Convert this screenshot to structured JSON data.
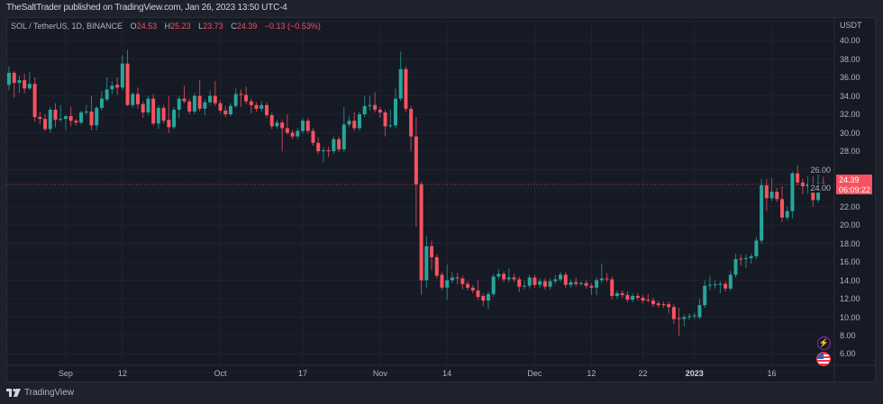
{
  "header": {
    "published": "TheSaltTrader published on TradingView.com, Jan 26, 2023 13:50 UTC-4"
  },
  "legend": {
    "symbol": "SOL / TetherUS, 1D, BINANCE",
    "o_label": "O",
    "o": "24.53",
    "h_label": "H",
    "h": "25.23",
    "l_label": "L",
    "l": "23.73",
    "c_label": "C",
    "c": "24.39",
    "change": "−0.13 (−0.53%)"
  },
  "price_axis": {
    "unit": "USDT",
    "last_price": "24.39",
    "countdown": "06:09:22"
  },
  "footer": {
    "brand": "TradingView"
  },
  "icons": {
    "events": "lightning-icon",
    "country": "us-flag-icon"
  },
  "colors": {
    "up": "#26a69a",
    "down": "#f7525f",
    "background": "#161a25",
    "grid": "#1f2330"
  },
  "chart_data": {
    "type": "candlestick",
    "title": "SOL / TetherUS, 1D, BINANCE",
    "ylabel": "USDT",
    "ylim": [
      4.78,
      42.54
    ],
    "grid": true,
    "y_ticks": [
      "40.00",
      "38.00",
      "36.00",
      "34.00",
      "32.00",
      "30.00",
      "28.00",
      "26.00",
      "24.00",
      "22.00",
      "20.00",
      "18.00",
      "16.00",
      "14.00",
      "12.00",
      "10.00",
      "8.00",
      "6.00"
    ],
    "x_ticks": [
      {
        "label": "Sep",
        "date": "2022-09-01"
      },
      {
        "label": "12",
        "date": "2022-09-12"
      },
      {
        "label": "Oct",
        "date": "2022-10-01"
      },
      {
        "label": "17",
        "date": "2022-10-17"
      },
      {
        "label": "Nov",
        "date": "2022-11-01"
      },
      {
        "label": "14",
        "date": "2022-11-14"
      },
      {
        "label": "Dec",
        "date": "2022-12-01"
      },
      {
        "label": "12",
        "date": "2022-12-12"
      },
      {
        "label": "22",
        "date": "2022-12-22"
      },
      {
        "label": "2023",
        "date": "2023-01-01",
        "bold": true
      },
      {
        "label": "16",
        "date": "2023-01-16"
      }
    ],
    "columns": [
      "date",
      "open",
      "high",
      "low",
      "close"
    ],
    "candles": [
      [
        "2022-08-21",
        35.2,
        37.2,
        34.6,
        36.5
      ],
      [
        "2022-08-22",
        36.5,
        36.7,
        33.8,
        35.4
      ],
      [
        "2022-08-23",
        35.4,
        36.2,
        34.3,
        35.7
      ],
      [
        "2022-08-24",
        35.7,
        36.4,
        34.3,
        34.8
      ],
      [
        "2022-08-25",
        34.8,
        36.6,
        34.6,
        35.3
      ],
      [
        "2022-08-26",
        35.3,
        36.0,
        31.2,
        31.7
      ],
      [
        "2022-08-27",
        31.7,
        32.3,
        30.9,
        31.5
      ],
      [
        "2022-08-28",
        31.5,
        32.0,
        30.2,
        30.4
      ],
      [
        "2022-08-29",
        30.4,
        32.8,
        30.0,
        32.5
      ],
      [
        "2022-08-30",
        32.5,
        33.2,
        30.6,
        31.4
      ],
      [
        "2022-08-31",
        31.4,
        33.0,
        31.2,
        31.5
      ],
      [
        "2022-09-01",
        31.5,
        31.9,
        30.3,
        31.8
      ],
      [
        "2022-09-02",
        31.8,
        32.8,
        30.7,
        31.3
      ],
      [
        "2022-09-03",
        31.3,
        31.5,
        30.8,
        31.1
      ],
      [
        "2022-09-04",
        31.1,
        32.4,
        30.9,
        32.2
      ],
      [
        "2022-09-05",
        32.2,
        33.0,
        31.9,
        32.3
      ],
      [
        "2022-09-06",
        32.3,
        34.0,
        30.3,
        30.8
      ],
      [
        "2022-09-07",
        30.8,
        32.9,
        30.3,
        32.7
      ],
      [
        "2022-09-08",
        32.7,
        34.5,
        32.4,
        33.7
      ],
      [
        "2022-09-09",
        33.6,
        36.0,
        33.4,
        34.7
      ],
      [
        "2022-09-10",
        34.7,
        35.6,
        34.2,
        35.1
      ],
      [
        "2022-09-11",
        35.2,
        36.0,
        34.1,
        34.9
      ],
      [
        "2022-09-12",
        34.9,
        38.4,
        34.6,
        37.5
      ],
      [
        "2022-09-13",
        37.5,
        39.0,
        32.9,
        33.0
      ],
      [
        "2022-09-14",
        33.0,
        34.4,
        32.7,
        34.2
      ],
      [
        "2022-09-15",
        34.2,
        34.9,
        32.6,
        33.1
      ],
      [
        "2022-09-16",
        33.1,
        33.4,
        31.6,
        32.2
      ],
      [
        "2022-09-17",
        32.2,
        34.0,
        31.9,
        33.7
      ],
      [
        "2022-09-18",
        33.7,
        34.2,
        30.8,
        31.0
      ],
      [
        "2022-09-19",
        31.0,
        33.0,
        30.4,
        32.7
      ],
      [
        "2022-09-20",
        32.7,
        33.0,
        31.0,
        31.3
      ],
      [
        "2022-09-21",
        31.4,
        34.0,
        30.0,
        30.6
      ],
      [
        "2022-09-22",
        30.6,
        32.8,
        30.4,
        32.5
      ],
      [
        "2022-09-23",
        32.5,
        34.0,
        31.6,
        33.7
      ],
      [
        "2022-09-24",
        33.7,
        35.1,
        33.2,
        33.4
      ],
      [
        "2022-09-25",
        33.4,
        33.7,
        32.0,
        32.3
      ],
      [
        "2022-09-26",
        32.3,
        34.3,
        32.0,
        34.0
      ],
      [
        "2022-09-27",
        34.0,
        35.7,
        32.3,
        32.6
      ],
      [
        "2022-09-28",
        32.6,
        33.6,
        31.9,
        33.3
      ],
      [
        "2022-09-29",
        33.3,
        34.6,
        33.0,
        34.0
      ],
      [
        "2022-09-30",
        34.0,
        35.6,
        32.9,
        33.2
      ],
      [
        "2022-10-01",
        33.2,
        33.5,
        32.1,
        32.4
      ],
      [
        "2022-10-02",
        32.4,
        32.9,
        31.7,
        32.0
      ],
      [
        "2022-10-03",
        32.0,
        33.2,
        31.8,
        32.9
      ],
      [
        "2022-10-04",
        32.9,
        34.8,
        32.7,
        34.2
      ],
      [
        "2022-10-05",
        34.2,
        34.7,
        32.8,
        34.1
      ],
      [
        "2022-10-06",
        34.1,
        35.0,
        33.1,
        33.4
      ],
      [
        "2022-10-07",
        33.4,
        33.7,
        32.1,
        33.0
      ],
      [
        "2022-10-08",
        33.0,
        33.3,
        32.3,
        32.6
      ],
      [
        "2022-10-09",
        32.6,
        33.4,
        32.3,
        33.0
      ],
      [
        "2022-10-10",
        33.0,
        33.3,
        31.6,
        31.9
      ],
      [
        "2022-10-11",
        31.9,
        32.2,
        30.4,
        30.7
      ],
      [
        "2022-10-12",
        30.7,
        31.4,
        30.4,
        31.1
      ],
      [
        "2022-10-13",
        31.1,
        31.4,
        28.0,
        30.5
      ],
      [
        "2022-10-14",
        30.5,
        32.0,
        29.8,
        30.0
      ],
      [
        "2022-10-15",
        30.0,
        30.3,
        29.3,
        29.6
      ],
      [
        "2022-10-16",
        29.6,
        30.5,
        29.3,
        30.2
      ],
      [
        "2022-10-17",
        30.2,
        31.6,
        29.9,
        31.3
      ],
      [
        "2022-10-18",
        31.3,
        31.6,
        29.9,
        30.2
      ],
      [
        "2022-10-19",
        30.2,
        30.5,
        28.6,
        28.9
      ],
      [
        "2022-10-20",
        28.9,
        29.5,
        27.7,
        28.0
      ],
      [
        "2022-10-21",
        28.0,
        28.4,
        26.8,
        28.1
      ],
      [
        "2022-10-22",
        28.1,
        28.5,
        27.4,
        28.0
      ],
      [
        "2022-10-23",
        28.0,
        29.6,
        27.7,
        29.3
      ],
      [
        "2022-10-24",
        29.3,
        29.6,
        27.9,
        28.2
      ],
      [
        "2022-10-25",
        28.2,
        32.8,
        27.9,
        30.9
      ],
      [
        "2022-10-26",
        30.9,
        31.8,
        30.6,
        31.3
      ],
      [
        "2022-10-27",
        31.3,
        32.2,
        30.2,
        30.5
      ],
      [
        "2022-10-28",
        30.5,
        32.3,
        30.2,
        32.0
      ],
      [
        "2022-10-29",
        32.0,
        34.0,
        31.7,
        32.9
      ],
      [
        "2022-10-30",
        32.9,
        34.0,
        32.4,
        33.0
      ],
      [
        "2022-10-31",
        33.0,
        34.4,
        32.2,
        32.5
      ],
      [
        "2022-11-01",
        32.5,
        32.8,
        31.6,
        32.2
      ],
      [
        "2022-11-02",
        32.2,
        32.5,
        29.6,
        30.7
      ],
      [
        "2022-11-03",
        30.7,
        32.5,
        30.5,
        30.8
      ],
      [
        "2022-11-04",
        30.8,
        34.8,
        30.5,
        33.7
      ],
      [
        "2022-11-05",
        33.7,
        38.8,
        33.4,
        36.9
      ],
      [
        "2022-11-06",
        36.9,
        37.2,
        32.3,
        32.6
      ],
      [
        "2022-11-07",
        32.6,
        32.9,
        28.0,
        29.6
      ],
      [
        "2022-11-08",
        29.6,
        31.7,
        19.8,
        24.4
      ],
      [
        "2022-11-09",
        24.4,
        24.7,
        12.4,
        14.0
      ],
      [
        "2022-11-10",
        14.0,
        18.8,
        13.2,
        17.7
      ],
      [
        "2022-11-11",
        17.7,
        18.3,
        15.1,
        16.5
      ],
      [
        "2022-11-12",
        16.5,
        16.8,
        14.2,
        14.5
      ],
      [
        "2022-11-13",
        14.6,
        14.9,
        12.9,
        13.2
      ],
      [
        "2022-11-14",
        13.2,
        15.7,
        11.9,
        14.0
      ],
      [
        "2022-11-15",
        14.0,
        14.9,
        13.7,
        14.3
      ],
      [
        "2022-11-16",
        14.3,
        14.8,
        13.6,
        14.2
      ],
      [
        "2022-11-17",
        14.2,
        14.5,
        13.0,
        13.6
      ],
      [
        "2022-11-18",
        13.6,
        13.9,
        12.9,
        13.2
      ],
      [
        "2022-11-19",
        13.2,
        13.5,
        12.6,
        12.9
      ],
      [
        "2022-11-20",
        12.9,
        14.0,
        11.9,
        12.2
      ],
      [
        "2022-11-21",
        12.3,
        12.6,
        11.2,
        11.8
      ],
      [
        "2022-11-22",
        11.8,
        12.8,
        10.9,
        12.5
      ],
      [
        "2022-11-23",
        12.5,
        14.7,
        12.2,
        14.4
      ],
      [
        "2022-11-24",
        14.4,
        15.2,
        14.1,
        14.7
      ],
      [
        "2022-11-25",
        14.7,
        15.0,
        13.8,
        14.1
      ],
      [
        "2022-11-26",
        14.1,
        15.3,
        13.8,
        14.3
      ],
      [
        "2022-11-27",
        14.3,
        14.7,
        13.8,
        14.1
      ],
      [
        "2022-11-28",
        14.1,
        14.4,
        12.7,
        13.3
      ],
      [
        "2022-11-29",
        13.3,
        14.0,
        13.0,
        13.4
      ],
      [
        "2022-11-30",
        13.4,
        14.6,
        13.1,
        14.3
      ],
      [
        "2022-12-01",
        14.3,
        14.6,
        13.2,
        13.5
      ],
      [
        "2022-12-02",
        13.5,
        14.2,
        13.2,
        13.9
      ],
      [
        "2022-12-03",
        13.9,
        14.2,
        13.0,
        13.3
      ],
      [
        "2022-12-04",
        13.3,
        14.2,
        13.0,
        13.9
      ],
      [
        "2022-12-05",
        13.9,
        14.6,
        13.6,
        14.1
      ],
      [
        "2022-12-06",
        14.1,
        14.9,
        13.8,
        14.6
      ],
      [
        "2022-12-07",
        14.6,
        14.9,
        13.2,
        13.5
      ],
      [
        "2022-12-08",
        13.5,
        14.1,
        13.2,
        13.8
      ],
      [
        "2022-12-09",
        13.8,
        14.3,
        13.3,
        13.6
      ],
      [
        "2022-12-10",
        13.6,
        13.9,
        13.4,
        13.7
      ],
      [
        "2022-12-11",
        13.7,
        14.0,
        13.1,
        13.4
      ],
      [
        "2022-12-12",
        13.4,
        13.7,
        12.4,
        13.2
      ],
      [
        "2022-12-13",
        13.2,
        14.3,
        12.4,
        14.0
      ],
      [
        "2022-12-14",
        14.0,
        15.8,
        13.7,
        14.2
      ],
      [
        "2022-12-15",
        14.2,
        14.8,
        13.8,
        14.1
      ],
      [
        "2022-12-16",
        14.1,
        14.4,
        11.9,
        12.3
      ],
      [
        "2022-12-17",
        12.3,
        12.9,
        12.0,
        12.6
      ],
      [
        "2022-12-18",
        12.6,
        12.9,
        12.1,
        12.4
      ],
      [
        "2022-12-19",
        12.4,
        12.8,
        11.6,
        11.9
      ],
      [
        "2022-12-20",
        11.9,
        12.6,
        11.6,
        12.3
      ],
      [
        "2022-12-21",
        12.3,
        12.6,
        11.8,
        12.1
      ],
      [
        "2022-12-22",
        12.1,
        12.4,
        11.5,
        11.8
      ],
      [
        "2022-12-23",
        11.9,
        12.5,
        11.6,
        11.8
      ],
      [
        "2022-12-24",
        11.8,
        12.1,
        11.1,
        11.4
      ],
      [
        "2022-12-25",
        11.5,
        11.8,
        11.0,
        11.3
      ],
      [
        "2022-12-26",
        11.4,
        11.7,
        11.0,
        11.3
      ],
      [
        "2022-12-27",
        11.4,
        11.7,
        10.4,
        11.1
      ],
      [
        "2022-12-28",
        11.1,
        11.4,
        9.3,
        9.8
      ],
      [
        "2022-12-29",
        9.9,
        11.0,
        8.0,
        9.8
      ],
      [
        "2022-12-30",
        9.8,
        10.3,
        9.0,
        10.0
      ],
      [
        "2022-12-31",
        10.0,
        10.4,
        9.7,
        10.1
      ],
      [
        "2023-01-01",
        10.1,
        10.5,
        9.8,
        10.2
      ],
      [
        "2023-01-02",
        10.0,
        12.0,
        9.8,
        11.3
      ],
      [
        "2023-01-03",
        11.3,
        14.0,
        11.0,
        13.4
      ],
      [
        "2023-01-04",
        13.4,
        14.5,
        12.9,
        13.5
      ],
      [
        "2023-01-05",
        13.5,
        14.0,
        13.1,
        13.55
      ],
      [
        "2023-01-06",
        13.5,
        13.9,
        12.6,
        13.6
      ],
      [
        "2023-01-07",
        13.6,
        13.9,
        12.8,
        13.1
      ],
      [
        "2023-01-08",
        13.1,
        15.0,
        12.9,
        14.6
      ],
      [
        "2023-01-09",
        14.6,
        16.9,
        14.3,
        16.3
      ],
      [
        "2023-01-10",
        16.35,
        16.8,
        15.6,
        16.25
      ],
      [
        "2023-01-11",
        16.3,
        16.8,
        15.3,
        16.4
      ],
      [
        "2023-01-12",
        16.4,
        16.9,
        15.8,
        16.6
      ],
      [
        "2023-01-13",
        16.6,
        18.7,
        16.3,
        18.3
      ],
      [
        "2023-01-14",
        18.3,
        25.0,
        18.0,
        24.3
      ],
      [
        "2023-01-15",
        24.3,
        25.0,
        21.5,
        22.9
      ],
      [
        "2023-01-16",
        22.9,
        25.1,
        22.6,
        23.6
      ],
      [
        "2023-01-17",
        23.6,
        24.0,
        22.5,
        22.8
      ],
      [
        "2023-01-18",
        22.8,
        24.2,
        20.3,
        20.8
      ],
      [
        "2023-01-19",
        20.8,
        22.0,
        20.5,
        21.5
      ],
      [
        "2023-01-20",
        21.5,
        25.8,
        20.7,
        25.6
      ],
      [
        "2023-01-21",
        25.6,
        26.5,
        24.3,
        24.6
      ],
      [
        "2023-01-22",
        24.6,
        25.0,
        23.3,
        24.2
      ],
      [
        "2023-01-23",
        24.2,
        25.3,
        23.4,
        24.4
      ],
      [
        "2023-01-24",
        24.4,
        25.3,
        22.0,
        22.7
      ],
      [
        "2023-01-25",
        22.7,
        25.7,
        22.4,
        24.53
      ],
      [
        "2023-01-26",
        24.53,
        25.23,
        23.73,
        24.39
      ]
    ],
    "last_price": 24.39
  }
}
